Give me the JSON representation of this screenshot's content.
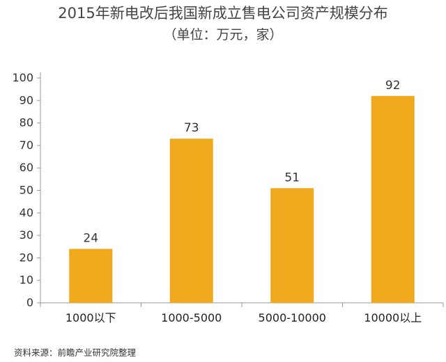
{
  "chart_data": {
    "type": "bar",
    "title": "2015年新电改后我国新成立售电公司资产规模分布",
    "subtitle": "（单位：万元，家）",
    "categories": [
      "1000以下",
      "1000-5000",
      "5000-10000",
      "10000以上"
    ],
    "values": [
      24,
      73,
      51,
      92
    ],
    "ylim": [
      0,
      100
    ],
    "yticks": [
      0,
      10,
      20,
      30,
      40,
      50,
      60,
      70,
      80,
      90,
      100
    ],
    "grid": false,
    "legend": "none",
    "bar_color": "#F0A91C",
    "axis_color": "#999999"
  },
  "source": "资料来源：前瞻产业研究院整理"
}
